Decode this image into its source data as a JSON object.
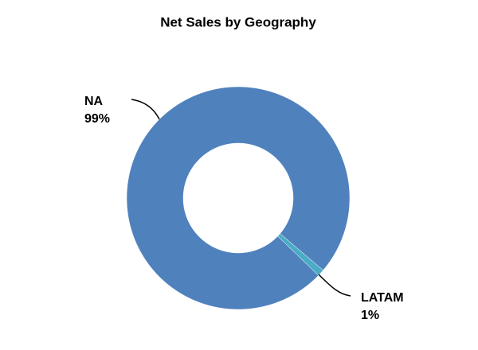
{
  "chart_data": {
    "type": "donut",
    "title": "Net Sales by Geography",
    "categories": [
      "NA",
      "LATAM"
    ],
    "values": [
      99,
      1
    ],
    "value_labels": [
      "99%",
      "1%"
    ],
    "colors": [
      "#4f81bd",
      "#4bacc6"
    ]
  }
}
